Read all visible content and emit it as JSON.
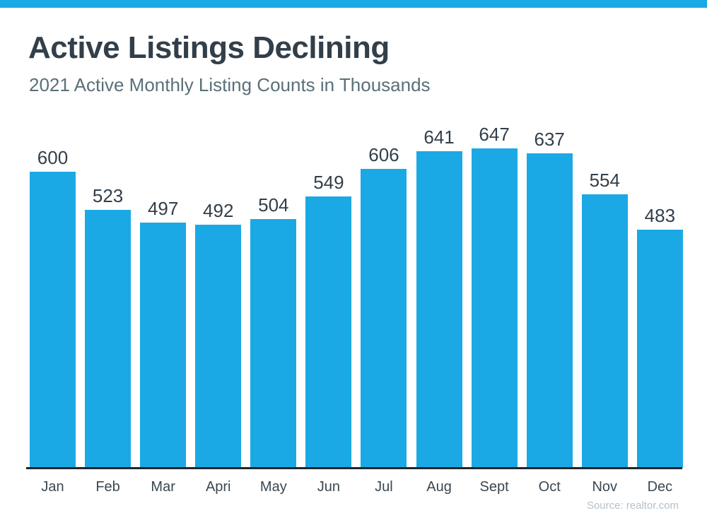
{
  "page": {
    "background_color": "#ffffff",
    "accent_bar_color": "#1AA9E4"
  },
  "header": {
    "title": "Active Listings Declining",
    "subtitle": "2021 Active Monthly Listing Counts in Thousands"
  },
  "footer": {
    "source": "Source: realtor.com"
  },
  "chart_data": {
    "type": "bar",
    "title": "Active Listings Declining",
    "subtitle": "2021 Active Monthly Listing Counts in Thousands",
    "categories": [
      "Jan",
      "Feb",
      "Mar",
      "Apri",
      "May",
      "Jun",
      "Jul",
      "Aug",
      "Sept",
      "Oct",
      "Nov",
      "Dec"
    ],
    "values": [
      600,
      523,
      497,
      492,
      504,
      549,
      606,
      641,
      647,
      637,
      554,
      483
    ],
    "xlabel": "",
    "ylabel": "",
    "ylim": [
      0,
      660
    ],
    "grid": false,
    "legend": "none",
    "value_labels_shown": true,
    "bar_color": "#1AA9E4",
    "value_label_color": "#323F4A",
    "axis_label_color": "#3A4750",
    "axis_line_color": "#20262B",
    "source": "Source: realtor.com"
  }
}
